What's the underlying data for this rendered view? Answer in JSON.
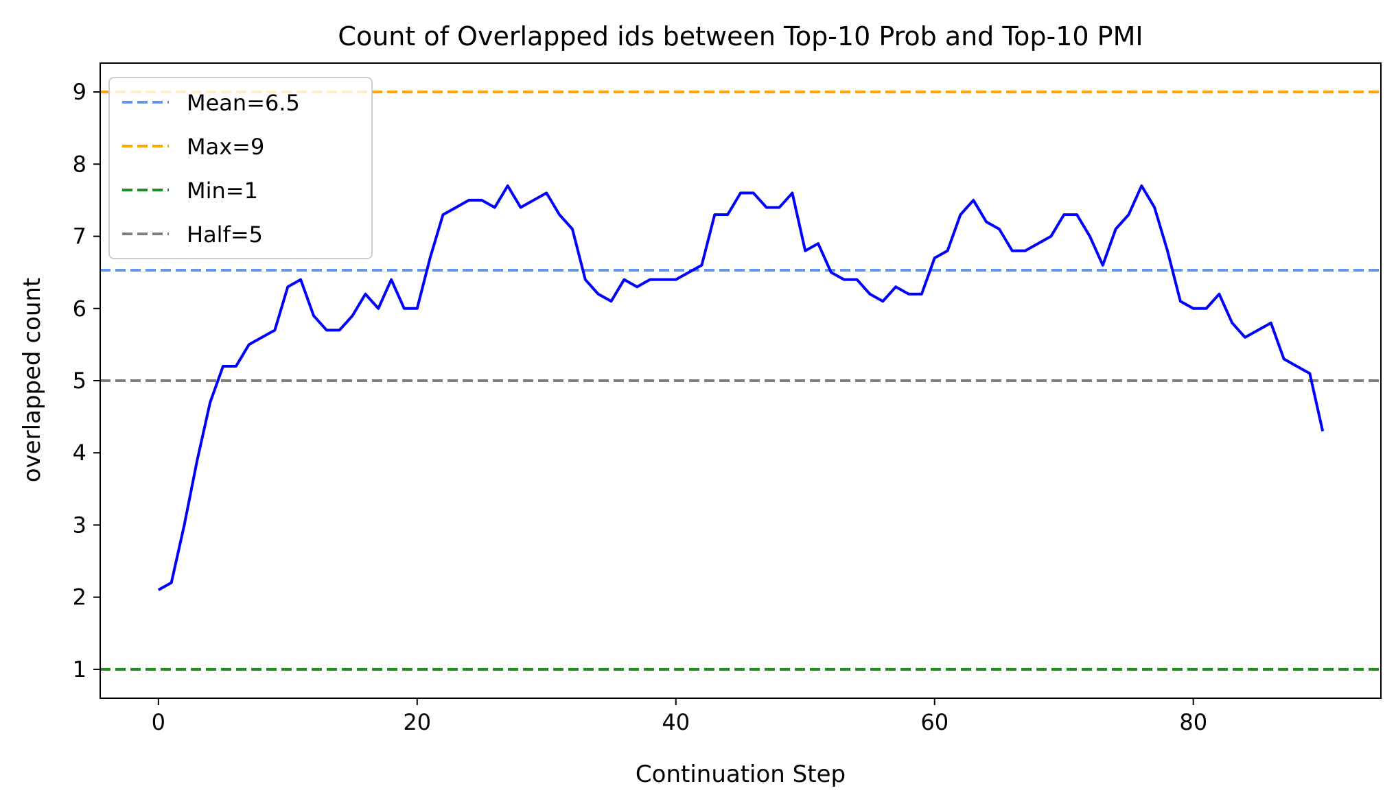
{
  "chart_data": {
    "type": "line",
    "title": "Count of Overlapped ids between Top-10 Prob and Top-10 PMI",
    "xlabel": "Continuation Step",
    "ylabel": "overlapped count",
    "xlim": [
      -4.5,
      94.5
    ],
    "ylim": [
      0.6,
      9.4
    ],
    "x_ticks": [
      0,
      20,
      40,
      60,
      80
    ],
    "x_tick_labels": [
      "0",
      "20",
      "40",
      "60",
      "80"
    ],
    "y_ticks": [
      1,
      2,
      3,
      4,
      5,
      6,
      7,
      8,
      9
    ],
    "y_tick_labels": [
      "1",
      "2",
      "3",
      "4",
      "5",
      "6",
      "7",
      "8",
      "9"
    ],
    "grid": false,
    "legend_position": "top-left",
    "series": [
      {
        "color": "#0000ff",
        "style": "solid",
        "x": [
          0,
          1,
          2,
          3,
          4,
          5,
          6,
          7,
          8,
          9,
          10,
          11,
          12,
          13,
          14,
          15,
          16,
          17,
          18,
          19,
          20,
          21,
          22,
          23,
          24,
          25,
          26,
          27,
          28,
          29,
          30,
          31,
          32,
          33,
          34,
          35,
          36,
          37,
          38,
          39,
          40,
          41,
          42,
          43,
          44,
          45,
          46,
          47,
          48,
          49,
          50,
          51,
          52,
          53,
          54,
          55,
          56,
          57,
          58,
          59,
          60,
          61,
          62,
          63,
          64,
          65,
          66,
          67,
          68,
          69,
          70,
          71,
          72,
          73,
          74,
          75,
          76,
          77,
          78,
          79,
          80,
          81,
          82,
          83,
          84,
          85,
          86,
          87,
          88,
          89,
          90
        ],
        "values": [
          2.1,
          2.2,
          3.0,
          3.9,
          4.7,
          5.2,
          5.2,
          5.5,
          5.6,
          5.7,
          6.3,
          6.4,
          5.9,
          5.7,
          5.7,
          5.9,
          6.2,
          6.0,
          6.4,
          6.0,
          6.0,
          6.7,
          7.3,
          7.4,
          7.5,
          7.5,
          7.4,
          7.7,
          7.4,
          7.5,
          7.6,
          7.3,
          7.1,
          6.4,
          6.2,
          6.1,
          6.4,
          6.3,
          6.4,
          6.4,
          6.4,
          6.5,
          6.6,
          7.3,
          7.3,
          7.6,
          7.6,
          7.4,
          7.4,
          7.6,
          6.8,
          6.9,
          6.5,
          6.4,
          6.4,
          6.2,
          6.1,
          6.3,
          6.2,
          6.2,
          6.7,
          6.8,
          7.3,
          7.5,
          7.2,
          7.1,
          6.8,
          6.8,
          6.9,
          7.0,
          7.3,
          7.3,
          7.0,
          6.6,
          7.1,
          7.3,
          7.7,
          7.4,
          6.8,
          6.1,
          6.0,
          6.0,
          6.2,
          5.8,
          5.6,
          5.7,
          5.8,
          5.3,
          5.2,
          5.1,
          4.3
        ]
      }
    ],
    "reference_lines": [
      {
        "label": "Mean=6.5",
        "y": 6.53,
        "color": "#6495ed",
        "style": "dashed"
      },
      {
        "label": "Max=9",
        "y": 9,
        "color": "#ffa500",
        "style": "dashed"
      },
      {
        "label": "Min=1",
        "y": 1,
        "color": "#228b22",
        "style": "dashed"
      },
      {
        "label": "Half=5",
        "y": 5,
        "color": "#808080",
        "style": "dashed"
      }
    ]
  }
}
